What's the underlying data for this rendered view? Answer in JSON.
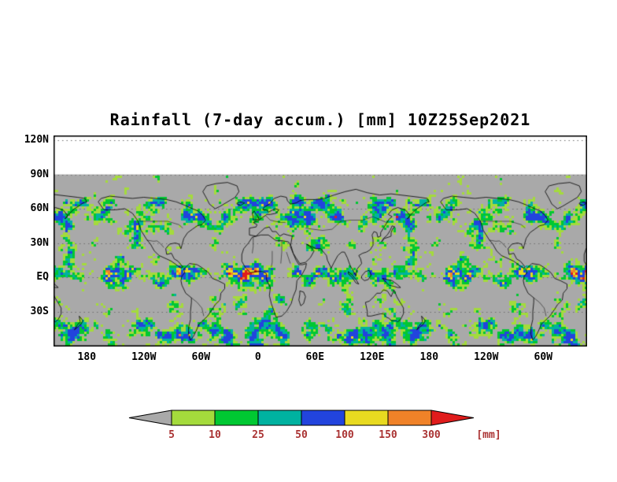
{
  "chart": {
    "title": "Rainfall (7-day accum.) [mm] 10Z25Sep2021"
  },
  "map": {
    "background_gray": "#a9a9a9",
    "frame_color": "#000000",
    "grid_color": "#6e6e6e",
    "y_ticks": [
      {
        "label": "120N",
        "lat": 120
      },
      {
        "label": "90N",
        "lat": 90
      },
      {
        "label": "60N",
        "lat": 60
      },
      {
        "label": "30N",
        "lat": 30
      },
      {
        "label": "EQ",
        "lat": 0
      },
      {
        "label": "30S",
        "lat": -30
      }
    ],
    "x_ticks": [
      {
        "label": "180",
        "lon": 180
      },
      {
        "label": "120W",
        "lon": 240
      },
      {
        "label": "60W",
        "lon": 300
      },
      {
        "label": "0",
        "lon": 360
      },
      {
        "label": "60E",
        "lon": 420
      },
      {
        "label": "120E",
        "lon": 480
      },
      {
        "label": "180",
        "lon": 540
      },
      {
        "label": "120W",
        "lon": 600
      },
      {
        "label": "60W",
        "lon": 660
      }
    ]
  },
  "legend": {
    "tick_labels": [
      "5",
      "10",
      "25",
      "50",
      "100",
      "150",
      "300"
    ],
    "units_label": "[mm]",
    "label_color": "#aa3333",
    "below_min_color": "#a9a9a9",
    "above_max_color": "#e01c1c",
    "bin_colors": [
      "#a4db3c",
      "#00c832",
      "#00b2a0",
      "#2244dd",
      "#e8da20",
      "#f08228"
    ]
  },
  "chart_data": {
    "type": "heatmap",
    "title": "Rainfall (7-day accum.) [mm] 10Z25Sep2021",
    "variable": "Rainfall (7-day accumulation)",
    "units": "mm",
    "valid_label": "10Z25Sep2021",
    "lat_tick_labels": [
      "120N",
      "90N",
      "60N",
      "30N",
      "EQ",
      "30S"
    ],
    "lon_tick_labels": [
      "180",
      "120W",
      "60W",
      "0",
      "60E",
      "120E",
      "180",
      "120W",
      "60W"
    ],
    "legend_position": "bottom",
    "color_bins": [
      {
        "range": "< 5",
        "color": "#a9a9a9"
      },
      {
        "range": "5-10",
        "color": "#a4db3c"
      },
      {
        "range": "10-25",
        "color": "#00c832"
      },
      {
        "range": "25-50",
        "color": "#00b2a0"
      },
      {
        "range": "50-100",
        "color": "#2244dd"
      },
      {
        "range": "100-150",
        "color": "#e8da20"
      },
      {
        "range": "150-300",
        "color": "#f08228"
      },
      {
        "range": "> 300",
        "color": "#e01c1c"
      }
    ]
  }
}
